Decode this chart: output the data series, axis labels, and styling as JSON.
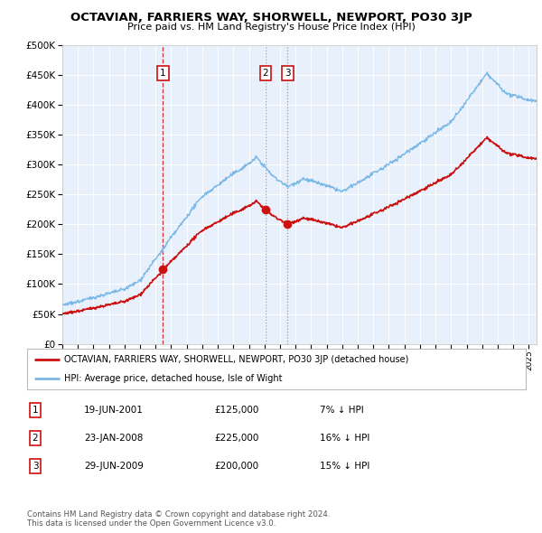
{
  "title": "OCTAVIAN, FARRIERS WAY, SHORWELL, NEWPORT, PO30 3JP",
  "subtitle": "Price paid vs. HM Land Registry's House Price Index (HPI)",
  "background_color": "#ffffff",
  "plot_bg": "#e8f0fb",
  "hpi_color": "#7ab8e8",
  "price_color": "#cc1111",
  "ylim": [
    0,
    500000
  ],
  "yticks": [
    0,
    50000,
    100000,
    150000,
    200000,
    250000,
    300000,
    350000,
    400000,
    450000,
    500000
  ],
  "sales": [
    {
      "date_x": 2001.47,
      "price": 125000,
      "label": "1",
      "vline_style": "red"
    },
    {
      "date_x": 2008.07,
      "price": 225000,
      "label": "2",
      "vline_style": "gray"
    },
    {
      "date_x": 2009.49,
      "price": 200000,
      "label": "3",
      "vline_style": "gray"
    }
  ],
  "legend_entries": [
    "OCTAVIAN, FARRIERS WAY, SHORWELL, NEWPORT, PO30 3JP (detached house)",
    "HPI: Average price, detached house, Isle of Wight"
  ],
  "table_rows": [
    [
      "1",
      "19-JUN-2001",
      "£125,000",
      "7% ↓ HPI"
    ],
    [
      "2",
      "23-JAN-2008",
      "£225,000",
      "16% ↓ HPI"
    ],
    [
      "3",
      "29-JUN-2009",
      "£200,000",
      "15% ↓ HPI"
    ]
  ],
  "footer": "Contains HM Land Registry data © Crown copyright and database right 2024.\nThis data is licensed under the Open Government Licence v3.0.",
  "xmin": 1995.0,
  "xmax": 2025.5
}
